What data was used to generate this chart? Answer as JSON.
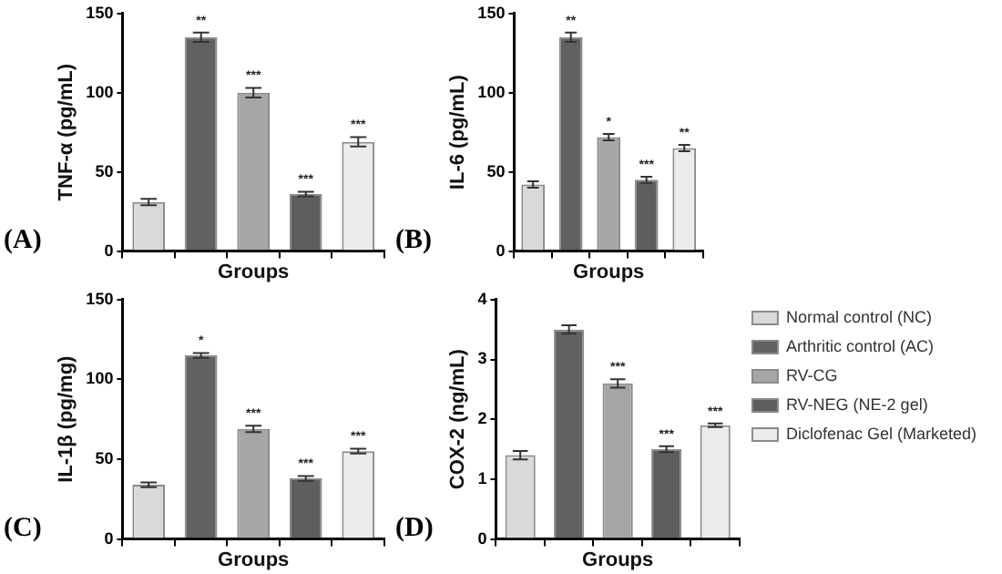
{
  "chart_data": [
    {
      "type": "bar",
      "ylabel": "TNF-α (pg/mL)",
      "xlabel": "Groups",
      "categories": [
        null,
        null,
        null,
        null,
        null
      ],
      "values": [
        31,
        135,
        100,
        36,
        69
      ],
      "errors": [
        2,
        3,
        3,
        1.5,
        3
      ],
      "value_labels": [
        null,
        "**",
        "***",
        "***",
        "***"
      ],
      "colors": [
        "#d9d9d9",
        "#616161",
        "#a6a6a6",
        "#5e5e5e",
        "#ececec"
      ],
      "ylim": [
        0,
        150
      ],
      "yticks": [
        0,
        50,
        100,
        150
      ],
      "tick_labels": "y",
      "annotations": [
        "(A)"
      ]
    },
    {
      "type": "bar",
      "ylabel": "IL-6 (pg/mL)",
      "xlabel": "Groups",
      "categories": [
        null,
        null,
        null,
        null,
        null
      ],
      "values": [
        42,
        135,
        72,
        45,
        65
      ],
      "errors": [
        2,
        3,
        2,
        2,
        2
      ],
      "value_labels": [
        null,
        "**",
        "*",
        "***",
        "**"
      ],
      "colors": [
        "#d9d9d9",
        "#616161",
        "#a6a6a6",
        "#5e5e5e",
        "#ececec"
      ],
      "ylim": [
        0,
        150
      ],
      "yticks": [
        0,
        50,
        100,
        150
      ],
      "tick_labels": "y",
      "annotations": [
        "(B)"
      ]
    },
    {
      "type": "bar",
      "ylabel": "IL-1β (pg/mg)",
      "xlabel": "Groups",
      "categories": [
        null,
        null,
        null,
        null,
        null
      ],
      "values": [
        34,
        115,
        69,
        38,
        55
      ],
      "errors": [
        1.5,
        1.5,
        2,
        1.5,
        1.5
      ],
      "value_labels": [
        null,
        "*",
        "***",
        "***",
        "***"
      ],
      "colors": [
        "#d9d9d9",
        "#616161",
        "#a6a6a6",
        "#5e5e5e",
        "#ececec"
      ],
      "ylim": [
        0,
        150
      ],
      "yticks": [
        0,
        50,
        100,
        150
      ],
      "tick_labels": "y",
      "annotations": [
        "(C)"
      ]
    },
    {
      "type": "bar",
      "ylabel": "COX-2 (ng/mL)",
      "xlabel": "Groups",
      "categories": [
        null,
        null,
        null,
        null,
        null
      ],
      "legend": "right",
      "ylim": [
        0,
        4
      ],
      "yticks": [
        0,
        1,
        2,
        3,
        4
      ],
      "tick_labels": "y",
      "annotations": [
        "(D)"
      ],
      "series": [
        {
          "name": "Normal control (NC)",
          "color": "#d9d9d9",
          "values": [
            1.4,
            null,
            null,
            null,
            null
          ],
          "errors": [
            0.07,
            null,
            null,
            null,
            null
          ],
          "value_labels": [
            null,
            null,
            null,
            null,
            null
          ]
        },
        {
          "name": "Arthritic control (AC)",
          "color": "#616161",
          "values": [
            null,
            3.5,
            null,
            null,
            null
          ],
          "errors": [
            null,
            0.07,
            null,
            null,
            null
          ],
          "value_labels": [
            null,
            null,
            null,
            null,
            null
          ]
        },
        {
          "name": "RV-CG",
          "color": "#a6a6a6",
          "values": [
            null,
            null,
            2.6,
            null,
            null
          ],
          "errors": [
            null,
            null,
            0.07,
            null,
            null
          ],
          "value_labels": [
            null,
            null,
            "***",
            null,
            null
          ]
        },
        {
          "name": "RV-NEG (NE-2 gel)",
          "color": "#5e5e5e",
          "values": [
            null,
            null,
            null,
            1.5,
            null
          ],
          "errors": [
            null,
            null,
            null,
            0.05,
            null
          ],
          "value_labels": [
            null,
            null,
            null,
            "***",
            null
          ]
        },
        {
          "name": "Diclofenac Gel (Marketed)",
          "color": "#ececec",
          "values": [
            null,
            null,
            null,
            null,
            1.9
          ],
          "errors": [
            null,
            null,
            null,
            null,
            0.03
          ],
          "value_labels": [
            null,
            null,
            null,
            null,
            "***"
          ]
        }
      ]
    }
  ]
}
